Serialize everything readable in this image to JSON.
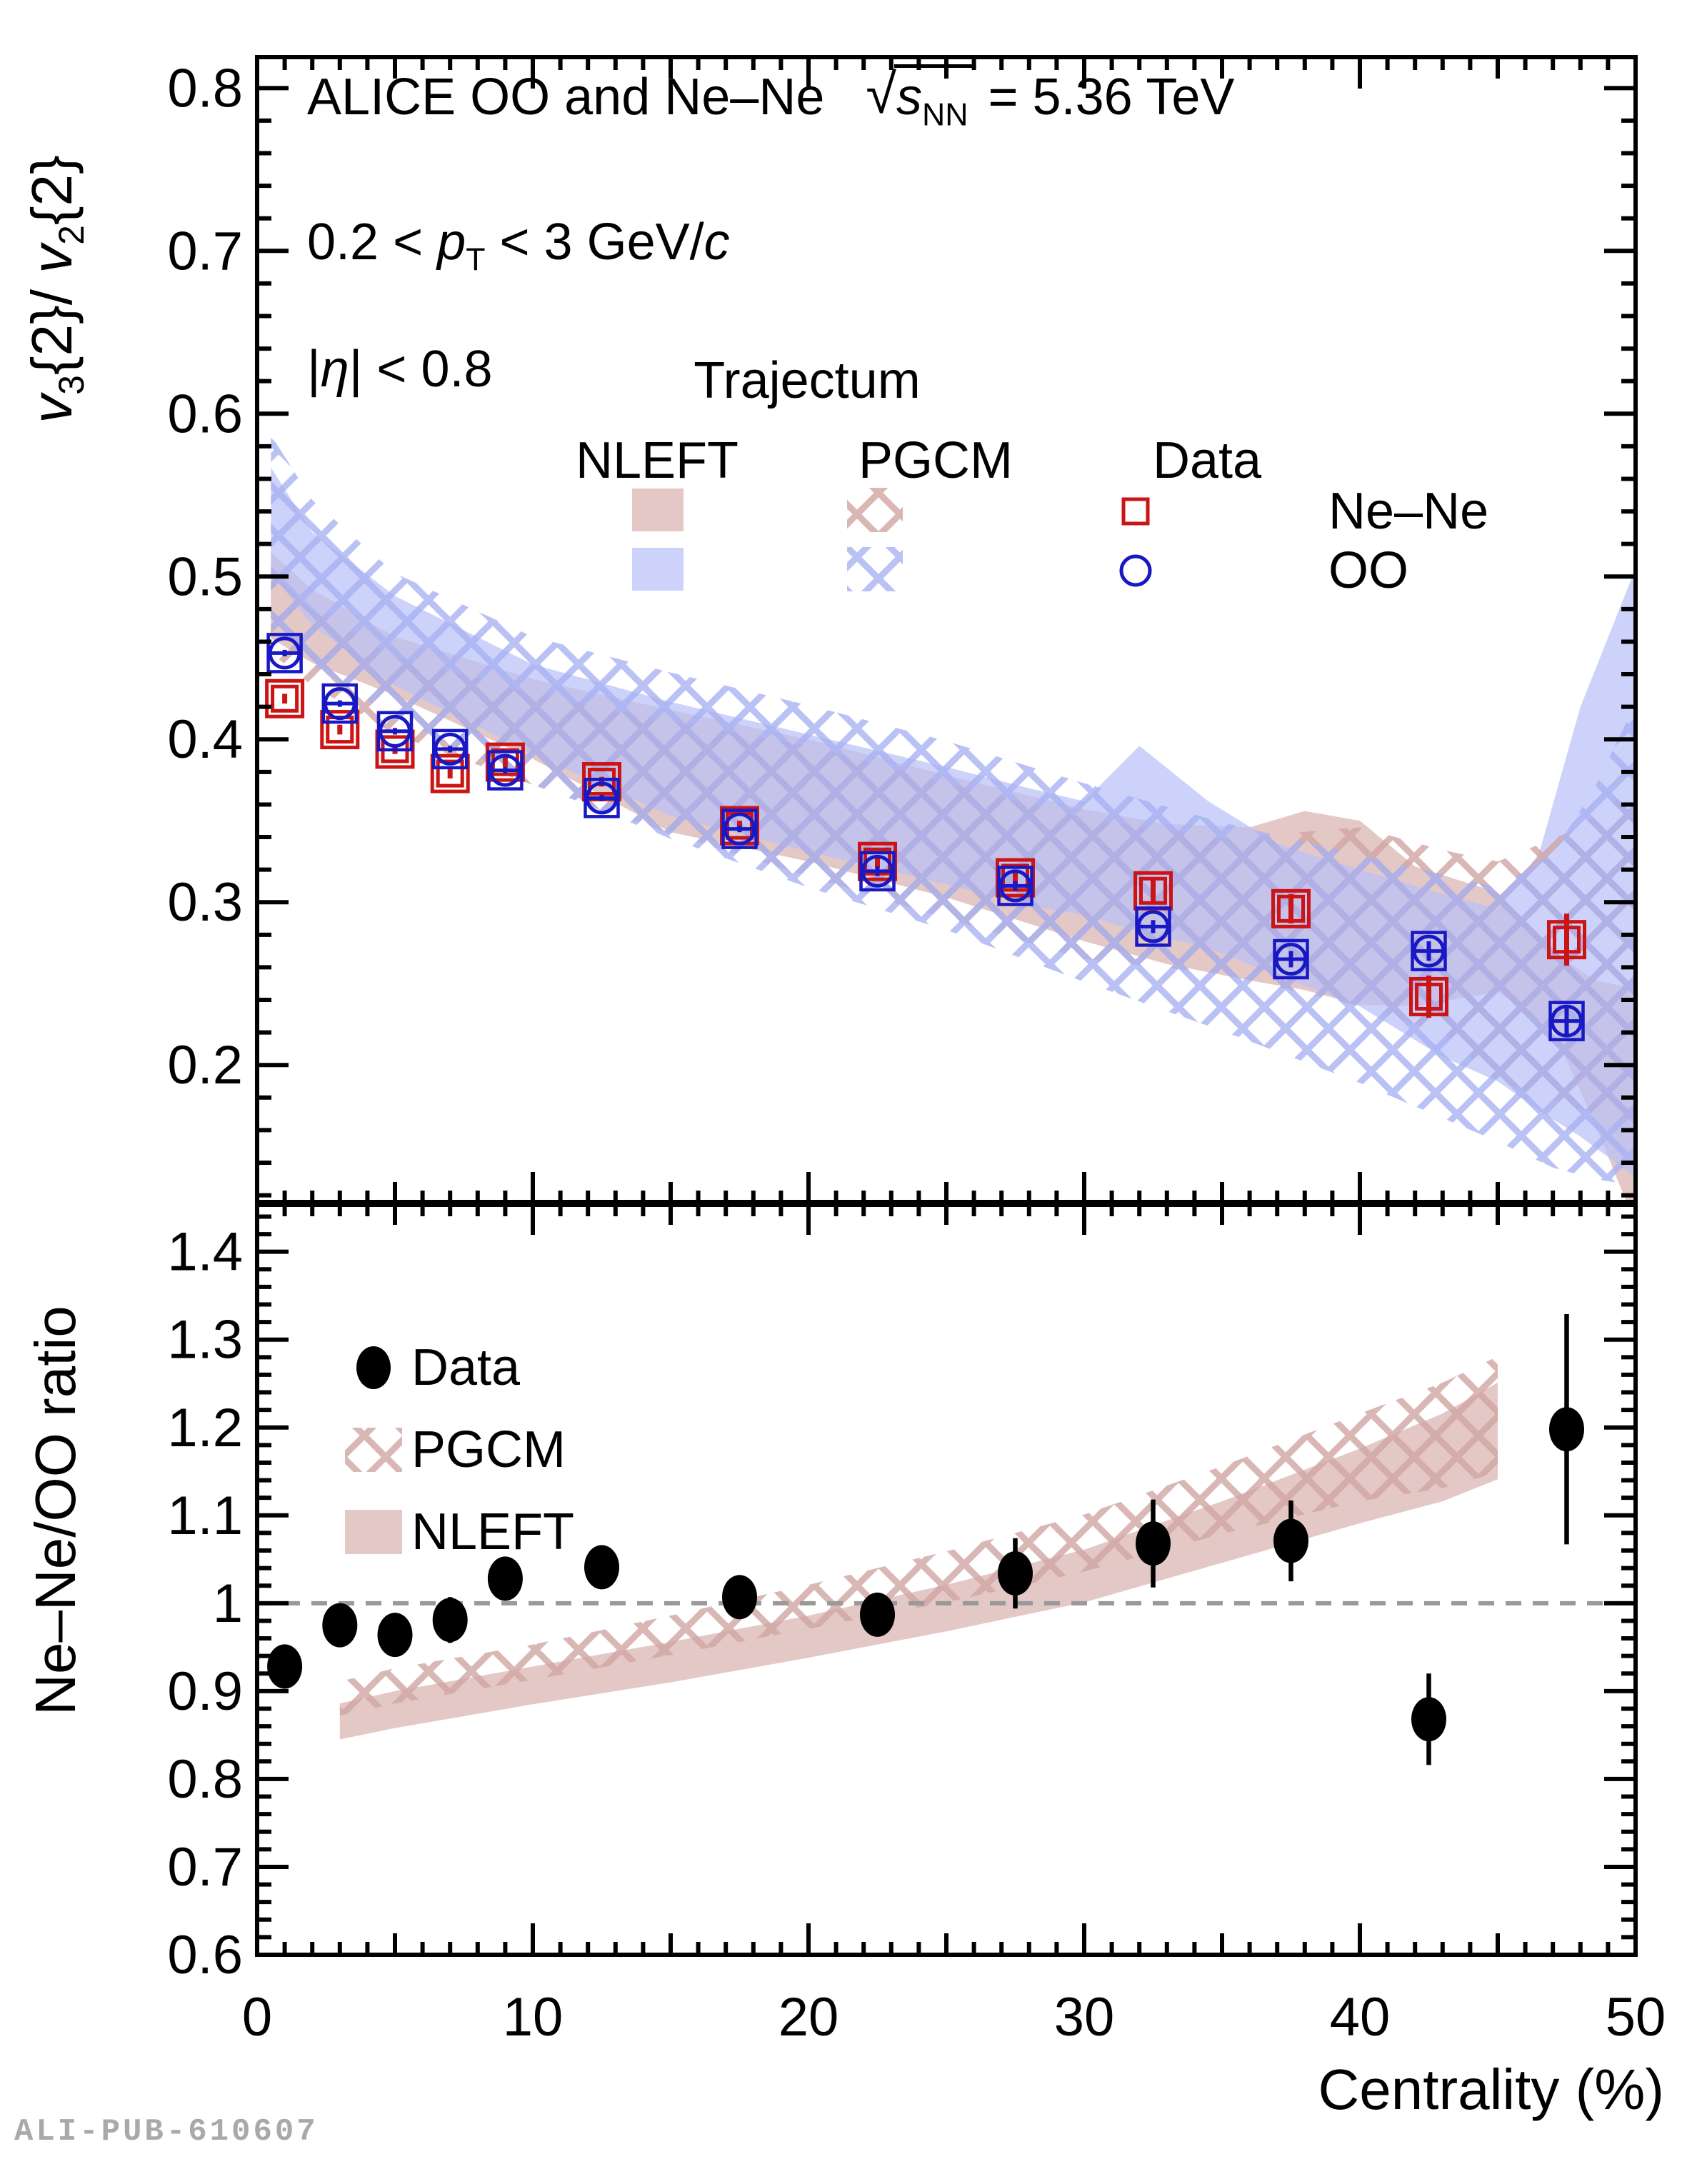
{
  "watermark": "ALI-PUB-610607",
  "header": {
    "title": "ALICE OO and Ne–Ne",
    "energy_radical": "√",
    "energy_radicand": "s",
    "energy_sub": "NN",
    "energy_value": " = 5.36 TeV",
    "pt_lo": "0.2 <  ",
    "pt_sym": "p",
    "pt_sub": "T",
    "pt_hi": " < 3 GeV/",
    "pt_unit": "c",
    "eta_open": "|",
    "eta_sym": "η",
    "eta_close": "| < 0.8"
  },
  "legend_top": {
    "title": "Trajectum",
    "col1": "NLEFT",
    "col2": "PGCM",
    "col3": "Data",
    "row1": "Ne–Ne",
    "row2": "OO"
  },
  "legend_bottom": {
    "item1": "Data",
    "item2": "PGCM",
    "item3": "NLEFT"
  },
  "axis": {
    "x_title": "Centrality (%)",
    "top_y_v1": "v",
    "top_y_s1": "3",
    "top_y_m1": "{2}/ ",
    "top_y_v2": "v",
    "top_y_s2": "2",
    "top_y_m2": "{2}",
    "bottom_y_title": "Ne–Ne/OO ratio"
  },
  "colors": {
    "nene_marker": "#cc1414",
    "oo_marker": "#1818c4",
    "data_marker": "#000000",
    "band_nleft_nene": "#d9b3b0",
    "band_nleft_oo": "#b9c0f8",
    "band_pgcm_nene": "#d0a5a2",
    "band_pgcm_oo": "#a9b2f3",
    "refline": "#999999",
    "frame": "#000000",
    "watermark": "#a9a9a9"
  },
  "chart_data": [
    {
      "id": "top",
      "type": "scatter",
      "title": "v3{2}/v2{2} vs centrality",
      "xlabel": "Centrality (%)",
      "ylabel": "v3{2}/v2{2}",
      "xlim": [
        0,
        50
      ],
      "ylim": [
        0.115,
        0.819
      ],
      "yticks": [
        0.2,
        0.3,
        0.4,
        0.5,
        0.6,
        0.7,
        0.8
      ],
      "xticks": [
        0,
        10,
        20,
        30,
        40,
        50
      ],
      "x": [
        1,
        3,
        5,
        7,
        9,
        12.5,
        17.5,
        22.5,
        27.5,
        32.5,
        37.5,
        42.5,
        47.5
      ],
      "series": [
        {
          "name": "Ne–Ne",
          "marker": "open-square",
          "color_key": "nene_marker",
          "values": [
            0.425,
            0.406,
            0.394,
            0.379,
            0.386,
            0.374,
            0.347,
            0.325,
            0.315,
            0.307,
            0.296,
            0.242,
            0.277
          ],
          "yerr": [
            0.003,
            0.003,
            0.003,
            0.003,
            0.003,
            0.003,
            0.003,
            0.004,
            0.005,
            0.007,
            0.009,
            0.013,
            0.016
          ]
        },
        {
          "name": "OO",
          "marker": "open-circle",
          "color_key": "oo_marker",
          "values": [
            0.453,
            0.422,
            0.405,
            0.394,
            0.381,
            0.364,
            0.345,
            0.319,
            0.31,
            0.285,
            0.265,
            0.27,
            0.227
          ],
          "yerr": [
            0.002,
            0.002,
            0.002,
            0.002,
            0.002,
            0.002,
            0.002,
            0.003,
            0.003,
            0.004,
            0.005,
            0.006,
            0.008
          ]
        }
      ],
      "bands": [
        {
          "name": "NLEFT Ne–Ne",
          "style": "solid",
          "color_key": "band_nleft_nene",
          "x": [
            0.5,
            2,
            5,
            10,
            15,
            20,
            25,
            30,
            33,
            36,
            38,
            40,
            42,
            45,
            47,
            48.5,
            50
          ],
          "upper": [
            0.515,
            0.492,
            0.463,
            0.437,
            0.418,
            0.4,
            0.378,
            0.357,
            0.348,
            0.346,
            0.356,
            0.35,
            0.322,
            0.306,
            0.27,
            0.252,
            0.247
          ],
          "lower": [
            0.462,
            0.447,
            0.427,
            0.388,
            0.343,
            0.325,
            0.303,
            0.276,
            0.262,
            0.252,
            0.246,
            0.237,
            0.236,
            0.245,
            0.222,
            0.165,
            0.102
          ]
        },
        {
          "name": "NLEFT OO",
          "style": "solid",
          "color_key": "band_nleft_oo",
          "x": [
            0.5,
            2,
            5,
            10,
            15,
            20,
            25,
            28,
            30,
            32,
            34.5,
            37,
            40,
            43,
            45,
            46.5,
            48,
            50
          ],
          "upper": [
            0.567,
            0.527,
            0.488,
            0.446,
            0.423,
            0.403,
            0.383,
            0.37,
            0.362,
            0.396,
            0.362,
            0.336,
            0.32,
            0.305,
            0.296,
            0.33,
            0.42,
            0.505
          ],
          "lower": [
            0.502,
            0.47,
            0.433,
            0.391,
            0.353,
            0.331,
            0.311,
            0.298,
            0.292,
            0.282,
            0.272,
            0.255,
            0.236,
            0.205,
            0.19,
            0.172,
            0.156,
            0.131
          ]
        },
        {
          "name": "PGCM Ne–Ne",
          "style": "hatch",
          "color_key": "band_pgcm_nene",
          "x": [
            0.5,
            2,
            5,
            10,
            15,
            20,
            25,
            30,
            35,
            40,
            43,
            45,
            48,
            50
          ],
          "upper": [
            0.502,
            0.479,
            0.451,
            0.428,
            0.411,
            0.396,
            0.373,
            0.352,
            0.339,
            0.346,
            0.332,
            0.325,
            0.346,
            0.372
          ],
          "lower": [
            0.453,
            0.433,
            0.403,
            0.372,
            0.342,
            0.316,
            0.29,
            0.265,
            0.256,
            0.236,
            0.22,
            0.19,
            0.173,
            0.166
          ]
        },
        {
          "name": "PGCM OO",
          "style": "hatch",
          "color_key": "band_pgcm_oo",
          "x": [
            0.5,
            2,
            5,
            10,
            15,
            20,
            25,
            30,
            35,
            40,
            45,
            47,
            48.5,
            50
          ],
          "upper": [
            0.587,
            0.547,
            0.502,
            0.463,
            0.441,
            0.421,
            0.399,
            0.373,
            0.349,
            0.329,
            0.309,
            0.33,
            0.37,
            0.422
          ],
          "lower": [
            0.469,
            0.446,
            0.413,
            0.373,
            0.339,
            0.309,
            0.283,
            0.251,
            0.221,
            0.189,
            0.153,
            0.137,
            0.13,
            0.126
          ]
        }
      ]
    },
    {
      "id": "ratio",
      "type": "scatter",
      "title": "Ne–Ne/OO ratio vs centrality",
      "xlabel": "Centrality (%)",
      "ylabel": "Ne–Ne/OO ratio",
      "xlim": [
        0,
        50
      ],
      "ylim": [
        0.6,
        1.455
      ],
      "yticks": [
        0.6,
        0.7,
        0.8,
        0.9,
        1,
        1.1,
        1.2,
        1.3,
        1.4
      ],
      "xticks": [
        0,
        10,
        20,
        30,
        40,
        50
      ],
      "refline": 1,
      "x": [
        1,
        3,
        5,
        7,
        9,
        12.5,
        17.5,
        22.5,
        27.5,
        32.5,
        37.5,
        42.5,
        47.5
      ],
      "series": [
        {
          "name": "Data",
          "marker": "filled-circle",
          "color_key": "data_marker",
          "values": [
            0.928,
            0.975,
            0.964,
            0.981,
            1.028,
            1.041,
            1.007,
            0.987,
            1.034,
            1.068,
            1.071,
            0.868,
            1.198
          ],
          "yerr": [
            0.015,
            0.013,
            0.016,
            0.026,
            0.021,
            0.015,
            0.021,
            0.017,
            0.04,
            0.05,
            0.046,
            0.052,
            0.131
          ]
        }
      ],
      "bands": [
        {
          "name": "NLEFT",
          "style": "solid",
          "color_key": "band_nleft_nene",
          "x": [
            3,
            5,
            10,
            15,
            20,
            25,
            30,
            35,
            40,
            43,
            45
          ],
          "upper": [
            0.886,
            0.9,
            0.928,
            0.956,
            0.986,
            1.021,
            1.061,
            1.116,
            1.176,
            1.216,
            1.251
          ],
          "lower": [
            0.845,
            0.858,
            0.885,
            0.91,
            0.938,
            0.968,
            1.001,
            1.046,
            1.091,
            1.116,
            1.141
          ]
        },
        {
          "name": "PGCM",
          "style": "hatch",
          "color_key": "band_pgcm_nene",
          "x": [
            3,
            5,
            10,
            15,
            20,
            25,
            30,
            35,
            40,
            43,
            45
          ],
          "upper": [
            0.911,
            0.926,
            0.953,
            0.986,
            1.021,
            1.059,
            1.101,
            1.156,
            1.216,
            1.251,
            1.281
          ],
          "lower": [
            0.872,
            0.886,
            0.913,
            0.941,
            0.971,
            1.001,
            1.036,
            1.079,
            1.116,
            1.131,
            1.149
          ]
        }
      ]
    }
  ]
}
